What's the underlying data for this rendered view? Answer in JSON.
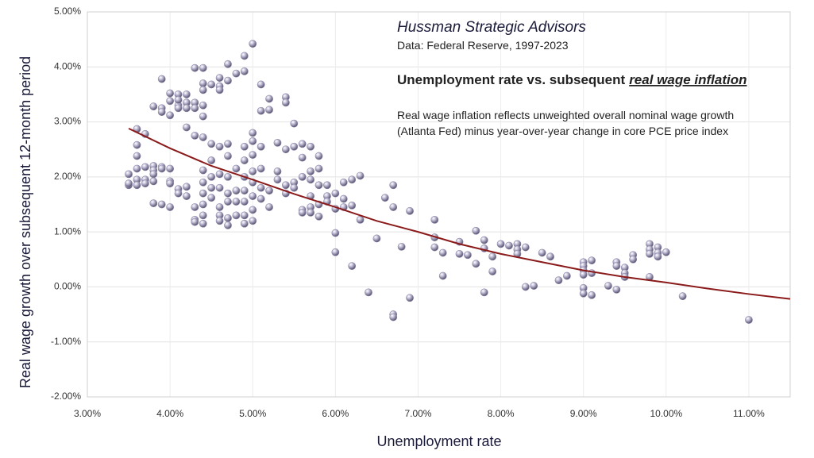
{
  "chart_data": {
    "type": "scatter",
    "header": "Hussman Strategic Advisors",
    "source": "Data: Federal Reserve, 1997-2023",
    "title": "Unemployment rate vs. subsequent",
    "title_emphasis": "real wage inflation",
    "note": [
      "Real wage inflation reflects unweighted overall nominal wage growth",
      "(Atlanta Fed) minus year-over-year change in core PCE price index"
    ],
    "x_label": "Unemployment rate",
    "y_label": "Real wage growth over subsequent 12-month period",
    "xlim": [
      3,
      11.5
    ],
    "ylim": [
      -2,
      5
    ],
    "xticks": [
      {
        "value": 3,
        "label": "3.00%"
      },
      {
        "value": 4,
        "label": "4.00%"
      },
      {
        "value": 5,
        "label": "5.00%"
      },
      {
        "value": 6,
        "label": "6.00%"
      },
      {
        "value": 7,
        "label": "7.00%"
      },
      {
        "value": 8,
        "label": "8.00%"
      },
      {
        "value": 9,
        "label": "9.00%"
      },
      {
        "value": 10,
        "label": "10.00%"
      },
      {
        "value": 11,
        "label": "11.00%"
      }
    ],
    "yticks": [
      {
        "value": -2,
        "label": "-2.00%"
      },
      {
        "value": -1,
        "label": "-1.00%"
      },
      {
        "value": 0,
        "label": "0.00%"
      },
      {
        "value": 1,
        "label": "1.00%"
      },
      {
        "value": 2,
        "label": "2.00%"
      },
      {
        "value": 3,
        "label": "3.00%"
      },
      {
        "value": 4,
        "label": "4.00%"
      },
      {
        "value": 5,
        "label": "5.00%"
      }
    ],
    "grid": true,
    "point_color": "#8e8aaa",
    "x": [
      3.5,
      3.5,
      3.5,
      3.6,
      3.6,
      3.6,
      3.6,
      3.6,
      3.6,
      3.7,
      3.7,
      3.7,
      3.7,
      3.8,
      3.8,
      3.8,
      3.8,
      3.8,
      3.8,
      3.9,
      3.9,
      3.9,
      3.9,
      3.9,
      3.9,
      4.0,
      4.0,
      4.0,
      4.0,
      4.0,
      4.0,
      4.0,
      4.1,
      4.1,
      4.1,
      4.1,
      4.1,
      4.1,
      4.2,
      4.2,
      4.2,
      4.2,
      4.2,
      4.2,
      4.3,
      4.3,
      4.3,
      4.3,
      4.3,
      4.3,
      4.3,
      4.4,
      4.4,
      4.4,
      4.4,
      4.4,
      4.4,
      4.4,
      4.4,
      4.4,
      4.4,
      4.4,
      4.4,
      4.5,
      4.5,
      4.5,
      4.5,
      4.5,
      4.5,
      4.6,
      4.6,
      4.6,
      4.6,
      4.6,
      4.6,
      4.6,
      4.6,
      4.6,
      4.7,
      4.7,
      4.7,
      4.7,
      4.7,
      4.7,
      4.7,
      4.7,
      4.7,
      4.8,
      4.8,
      4.8,
      4.8,
      4.8,
      4.9,
      4.9,
      4.9,
      4.9,
      4.9,
      4.9,
      4.9,
      4.9,
      4.9,
      5.0,
      5.0,
      5.0,
      5.0,
      5.0,
      5.0,
      5.0,
      5.0,
      5.0,
      5.1,
      5.1,
      5.1,
      5.1,
      5.1,
      5.1,
      5.2,
      5.2,
      5.2,
      5.2,
      5.3,
      5.3,
      5.3,
      5.4,
      5.4,
      5.4,
      5.4,
      5.4,
      5.5,
      5.5,
      5.5,
      5.5,
      5.6,
      5.6,
      5.6,
      5.6,
      5.6,
      5.7,
      5.7,
      5.7,
      5.7,
      5.7,
      5.7,
      5.8,
      5.8,
      5.8,
      5.8,
      5.8,
      5.9,
      5.9,
      5.9,
      6.0,
      6.0,
      6.0,
      6.0,
      6.1,
      6.1,
      6.1,
      6.2,
      6.2,
      6.2,
      6.3,
      6.3,
      6.4,
      6.5,
      6.6,
      6.7,
      6.7,
      6.7,
      6.7,
      6.8,
      6.9,
      6.9,
      7.2,
      7.2,
      7.2,
      7.3,
      7.3,
      7.5,
      7.5,
      7.6,
      7.7,
      7.7,
      7.8,
      7.8,
      7.8,
      7.9,
      7.9,
      8.0,
      8.1,
      8.2,
      8.2,
      8.2,
      8.3,
      8.3,
      8.4,
      8.5,
      8.6,
      8.7,
      8.8,
      9.0,
      9.0,
      9.0,
      9.0,
      9.0,
      9.0,
      9.1,
      9.1,
      9.1,
      9.3,
      9.4,
      9.4,
      9.4,
      9.5,
      9.5,
      9.5,
      9.6,
      9.6,
      9.8,
      9.8,
      9.8,
      9.8,
      9.9,
      9.9,
      9.9,
      10.0,
      10.2,
      11.0
    ],
    "y": [
      2.05,
      1.85,
      1.88,
      2.87,
      2.58,
      2.38,
      2.15,
      1.95,
      1.85,
      2.78,
      2.18,
      1.95,
      1.88,
      3.28,
      2.2,
      2.12,
      2.05,
      1.92,
      1.52,
      3.78,
      3.25,
      3.18,
      2.18,
      2.15,
      1.5,
      3.52,
      3.38,
      3.12,
      2.15,
      1.92,
      1.88,
      1.45,
      3.5,
      3.3,
      3.25,
      3.4,
      1.78,
      1.7,
      3.5,
      3.35,
      3.25,
      2.9,
      1.82,
      1.65,
      3.98,
      3.35,
      3.25,
      2.75,
      1.45,
      1.22,
      1.18,
      3.98,
      3.7,
      3.58,
      3.3,
      3.1,
      2.72,
      2.12,
      1.9,
      1.7,
      1.5,
      1.3,
      1.15,
      3.68,
      2.6,
      2.3,
      2.0,
      1.8,
      1.62,
      3.8,
      3.65,
      3.58,
      2.55,
      2.05,
      1.8,
      1.45,
      1.3,
      1.2,
      4.05,
      3.75,
      2.6,
      2.38,
      2.0,
      1.7,
      1.55,
      1.25,
      1.12,
      3.88,
      2.15,
      1.75,
      1.55,
      1.3,
      4.2,
      3.92,
      2.55,
      2.3,
      2.0,
      1.75,
      1.55,
      1.3,
      1.15,
      4.42,
      2.8,
      2.65,
      2.4,
      2.1,
      1.9,
      1.65,
      1.4,
      1.2,
      3.68,
      3.2,
      2.55,
      2.15,
      1.8,
      1.6,
      3.42,
      3.22,
      1.75,
      1.45,
      2.62,
      2.1,
      1.95,
      3.45,
      3.35,
      2.5,
      1.85,
      1.7,
      2.97,
      2.55,
      1.9,
      1.8,
      2.6,
      2.35,
      2.0,
      1.4,
      1.35,
      2.55,
      2.1,
      1.95,
      1.65,
      1.45,
      1.35,
      2.38,
      2.15,
      1.85,
      1.5,
      1.28,
      1.85,
      1.65,
      1.55,
      1.7,
      1.42,
      0.98,
      0.63,
      1.9,
      1.6,
      1.45,
      1.95,
      1.48,
      0.38,
      2.02,
      1.22,
      -0.1,
      0.88,
      1.62,
      1.85,
      1.45,
      -0.5,
      -0.55,
      0.73,
      1.38,
      -0.2,
      1.22,
      0.9,
      0.72,
      0.62,
      0.2,
      0.82,
      0.6,
      0.58,
      1.02,
      0.42,
      0.85,
      0.7,
      -0.1,
      0.55,
      0.28,
      0.78,
      0.75,
      0.78,
      0.68,
      0.6,
      0.72,
      0.0,
      0.02,
      0.62,
      0.55,
      0.12,
      0.2,
      0.45,
      0.38,
      0.3,
      0.22,
      -0.02,
      -0.12,
      0.48,
      0.25,
      -0.15,
      0.02,
      0.45,
      0.38,
      -0.05,
      0.35,
      0.25,
      0.18,
      0.58,
      0.5,
      0.78,
      0.68,
      0.6,
      0.18,
      0.72,
      0.62,
      0.55,
      0.63,
      -0.17,
      -0.6
    ],
    "trend": {
      "color": "#8b1a1a",
      "x": [
        3.5,
        4,
        4.5,
        5,
        5.5,
        6,
        6.5,
        7,
        7.5,
        8,
        8.5,
        9,
        9.5,
        10,
        10.5,
        11,
        11.5
      ],
      "values": [
        2.88,
        2.52,
        2.2,
        1.95,
        1.69,
        1.45,
        1.2,
        1.0,
        0.78,
        0.6,
        0.45,
        0.3,
        0.18,
        0.08,
        -0.03,
        -0.13,
        -0.22
      ]
    }
  }
}
